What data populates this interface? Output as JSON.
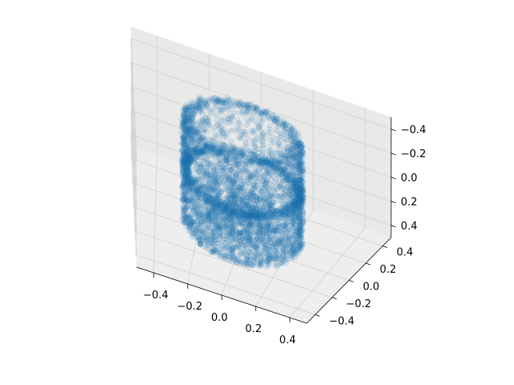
{
  "chart_data": {
    "type": "scatter",
    "projection": "3d",
    "title": "",
    "xlabel": "",
    "ylabel": "",
    "zlabel": "",
    "xlim": [
      -0.5,
      0.5
    ],
    "ylim": [
      -0.5,
      0.5
    ],
    "zlim": [
      0.5,
      -0.5
    ],
    "z_axis_inverted": true,
    "grid": true,
    "legend": "none",
    "marker_color": "#1f77b4",
    "marker_alpha": 0.1,
    "x_ticks": [
      "−0.4",
      "−0.2",
      "0.0",
      "0.2",
      "0.4"
    ],
    "y_ticks": [
      "−0.4",
      "−0.2",
      "0.0",
      "0.2",
      "0.4"
    ],
    "z_ticks": [
      "−0.4",
      "−0.2",
      "0.0",
      "0.2",
      "0.4"
    ],
    "point_cloud": {
      "shape": "capped cylinder with collar ring and hollow top",
      "cylinder_radius": 0.27,
      "z_range": [
        -0.42,
        0.42
      ],
      "collar_z": 0.0,
      "top_cap_z": -0.42,
      "bottom_cap_z": 0.42
    }
  }
}
